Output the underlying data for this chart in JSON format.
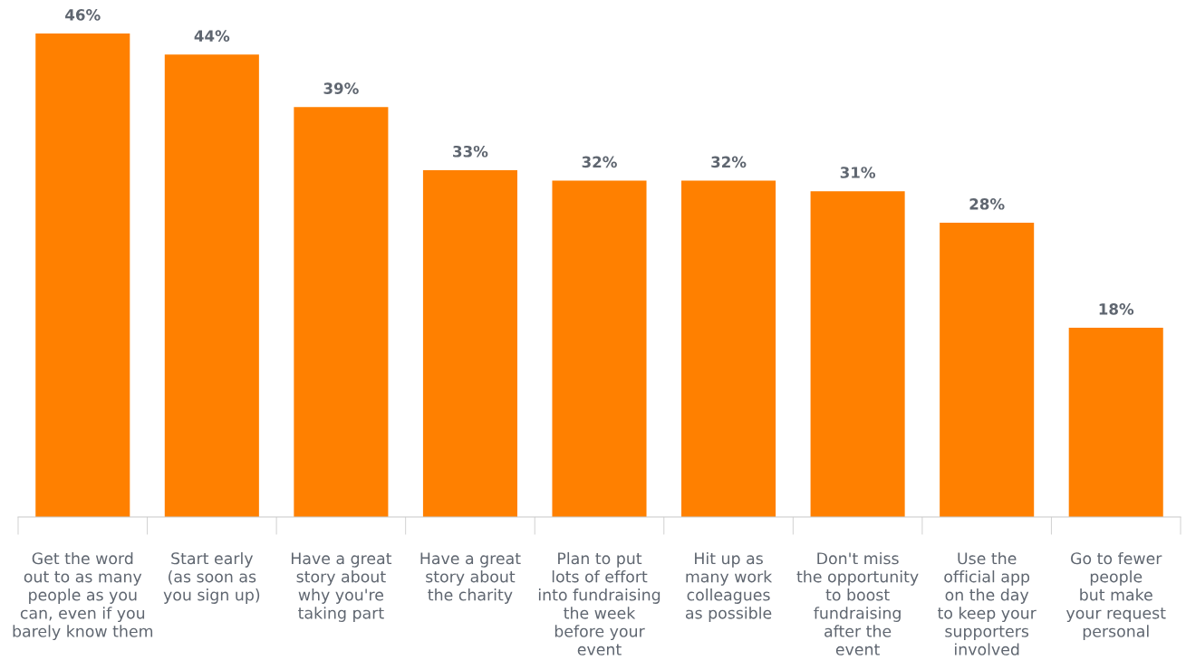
{
  "chart_data": {
    "type": "bar",
    "categories": [
      "Get the word\nout to as many\npeople as you\ncan, even if you\nbarely know them",
      "Start early\n(as soon as\nyou sign up)",
      "Have a great\nstory about\nwhy you're\ntaking part",
      "Have a great\nstory about\nthe charity",
      "Plan to put\nlots of effort\ninto fundraising\nthe week\nbefore your\nevent",
      "Hit up as\nmany work\ncolleagues\nas possible",
      "Don't miss\nthe opportunity\nto boost\nfundraising\nafter the\nevent",
      "Use the\nofficial app\non the day\nto keep your\nsupporters\ninvolved",
      "Go to fewer\npeople\nbut make\nyour request\npersonal"
    ],
    "values": [
      46,
      44,
      39,
      33,
      32,
      32,
      31,
      28,
      18
    ],
    "value_labels": [
      "46%",
      "44%",
      "39%",
      "33%",
      "32%",
      "32%",
      "31%",
      "28%",
      "18%"
    ],
    "color": "#ff8000",
    "tick_labels": "x"
  }
}
